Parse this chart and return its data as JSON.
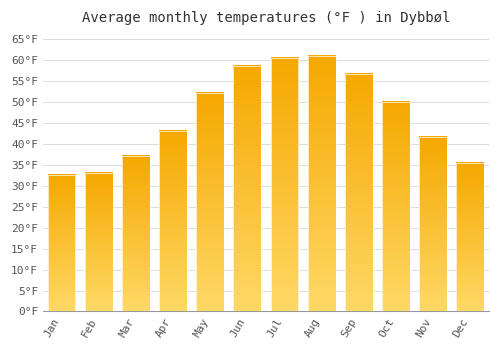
{
  "months": [
    "Jan",
    "Feb",
    "Mar",
    "Apr",
    "May",
    "Jun",
    "Jul",
    "Aug",
    "Sep",
    "Oct",
    "Nov",
    "Dec"
  ],
  "values": [
    32.5,
    33.0,
    37.0,
    43.0,
    52.0,
    58.5,
    60.5,
    61.0,
    56.5,
    50.0,
    41.5,
    35.5
  ],
  "bar_color_top": "#F5A800",
  "bar_color_bottom": "#FFD966",
  "title": "Average monthly temperatures (°F ) in Dybbøl",
  "ylim_min": 0,
  "ylim_max": 67,
  "ytick_values": [
    0,
    5,
    10,
    15,
    20,
    25,
    30,
    35,
    40,
    45,
    50,
    55,
    60,
    65
  ],
  "background_color": "#ffffff",
  "grid_color": "#dddddd",
  "title_fontsize": 10,
  "tick_fontsize": 8,
  "font_family": "monospace"
}
